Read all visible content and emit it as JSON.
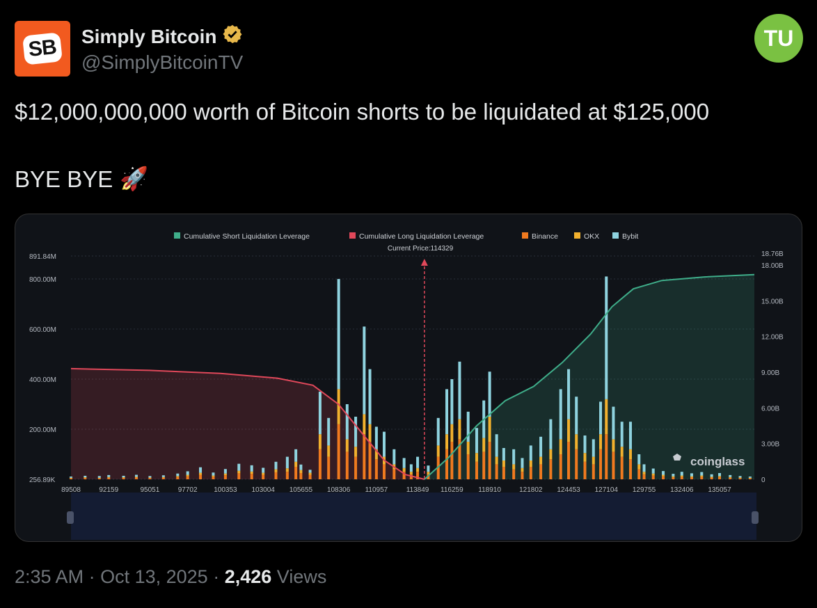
{
  "author": {
    "name": "Simply Bitcoin",
    "handle": "@SimplyBitcoinTV",
    "avatar_text": "SB",
    "verified_icon": "verified-badge-icon"
  },
  "brand_logo_text": "TU",
  "tweet": {
    "line1": "$12,000,000,000 worth of Bitcoin shorts to be liquidated at $125,000",
    "line2": "BYE BYE",
    "emoji": "🚀"
  },
  "meta": {
    "time": "2:35 AM",
    "date": "Oct 13, 2025",
    "views_count": "2,426",
    "views_label": "Views"
  },
  "chart_data": {
    "type": "bar",
    "annotation": "Current Price:114329",
    "current_price": 114329,
    "watermark": "coinglass",
    "legend": [
      {
        "name": "Cumulative Short Liquidation Leverage",
        "color": "#3fae8a"
      },
      {
        "name": "Cumulative Long Liquidation Leverage",
        "color": "#e0485a"
      },
      {
        "name": "Binance",
        "color": "#f07a1f"
      },
      {
        "name": "OKX",
        "color": "#f2b12e"
      },
      {
        "name": "Bybit",
        "color": "#8fd3df"
      }
    ],
    "legend_position": "top-center",
    "x_tick_labels": [
      "89508",
      "92159",
      "95051",
      "97702",
      "100353",
      "103004",
      "105655",
      "108306",
      "110957",
      "113849",
      "116259",
      "118910",
      "121802",
      "124453",
      "127104",
      "129755",
      "132406",
      "135057"
    ],
    "xlim": [
      89508,
      137500
    ],
    "y_left_ticks": [
      "256.89K",
      "200.00M",
      "400.00M",
      "600.00M",
      "800.00M",
      "891.84M"
    ],
    "y_left_values": [
      0.257,
      200,
      400,
      600,
      800,
      891.84
    ],
    "y_left_unit": "M",
    "ylim_left": [
      0,
      891.84
    ],
    "y_right_ticks": [
      "0",
      "3.00B",
      "6.00B",
      "9.00B",
      "12.00B",
      "15.00B",
      "18.00B",
      "18.76B"
    ],
    "y_right_values": [
      0,
      3,
      6,
      9,
      12,
      15,
      18,
      18.76
    ],
    "ylim_right": [
      0,
      18.76
    ],
    "cumulative_long": {
      "name": "Cumulative Long Liquidation Leverage",
      "x": [
        89508,
        95000,
        100000,
        104000,
        106500,
        108300,
        110000,
        111500,
        113000,
        114329
      ],
      "y": [
        9.3,
        9.15,
        8.9,
        8.5,
        7.9,
        6.3,
        3.8,
        1.6,
        0.4,
        0.0
      ]
    },
    "cumulative_short": {
      "name": "Cumulative Short Liquidation Leverage",
      "x": [
        114329,
        116000,
        118000,
        120000,
        122000,
        124000,
        126000,
        127500,
        129000,
        131000,
        134000,
        137500
      ],
      "y": [
        0.0,
        1.8,
        4.5,
        6.6,
        7.8,
        9.8,
        12.2,
        14.5,
        16.0,
        16.7,
        17.0,
        17.2
      ]
    },
    "bars": [
      {
        "x": 89508,
        "binance": 4,
        "okx": 2,
        "bybit": 5
      },
      {
        "x": 90500,
        "binance": 5,
        "okx": 3,
        "bybit": 6
      },
      {
        "x": 91500,
        "binance": 4,
        "okx": 2,
        "bybit": 7
      },
      {
        "x": 92159,
        "binance": 6,
        "okx": 3,
        "bybit": 8
      },
      {
        "x": 93200,
        "binance": 5,
        "okx": 3,
        "bybit": 6
      },
      {
        "x": 94100,
        "binance": 7,
        "okx": 3,
        "bybit": 8
      },
      {
        "x": 95051,
        "binance": 5,
        "okx": 2,
        "bybit": 6
      },
      {
        "x": 96000,
        "binance": 6,
        "okx": 3,
        "bybit": 7
      },
      {
        "x": 97000,
        "binance": 9,
        "okx": 4,
        "bybit": 10
      },
      {
        "x": 97702,
        "binance": 12,
        "okx": 6,
        "bybit": 14
      },
      {
        "x": 98600,
        "binance": 18,
        "okx": 8,
        "bybit": 22
      },
      {
        "x": 99500,
        "binance": 10,
        "okx": 5,
        "bybit": 12
      },
      {
        "x": 100353,
        "binance": 16,
        "okx": 7,
        "bybit": 18
      },
      {
        "x": 101300,
        "binance": 24,
        "okx": 10,
        "bybit": 28
      },
      {
        "x": 102200,
        "binance": 22,
        "okx": 9,
        "bybit": 25
      },
      {
        "x": 103004,
        "binance": 18,
        "okx": 8,
        "bybit": 20
      },
      {
        "x": 103900,
        "binance": 28,
        "okx": 12,
        "bybit": 30
      },
      {
        "x": 104700,
        "binance": 30,
        "okx": 14,
        "bybit": 46
      },
      {
        "x": 105300,
        "binance": 50,
        "okx": 20,
        "bybit": 50
      },
      {
        "x": 105655,
        "binance": 25,
        "okx": 12,
        "bybit": 22
      },
      {
        "x": 106300,
        "binance": 18,
        "okx": 8,
        "bybit": 12
      },
      {
        "x": 107000,
        "binance": 120,
        "okx": 60,
        "bybit": 170
      },
      {
        "x": 107600,
        "binance": 90,
        "okx": 45,
        "bybit": 110
      },
      {
        "x": 108306,
        "binance": 220,
        "okx": 140,
        "bybit": 440
      },
      {
        "x": 108900,
        "binance": 110,
        "okx": 50,
        "bybit": 140
      },
      {
        "x": 109500,
        "binance": 90,
        "okx": 40,
        "bybit": 120
      },
      {
        "x": 110100,
        "binance": 180,
        "okx": 80,
        "bybit": 350
      },
      {
        "x": 110500,
        "binance": 150,
        "okx": 70,
        "bybit": 220
      },
      {
        "x": 110957,
        "binance": 80,
        "okx": 40,
        "bybit": 90
      },
      {
        "x": 111500,
        "binance": 60,
        "okx": 30,
        "bybit": 100
      },
      {
        "x": 112200,
        "binance": 40,
        "okx": 20,
        "bybit": 60
      },
      {
        "x": 112900,
        "binance": 30,
        "okx": 15,
        "bybit": 40
      },
      {
        "x": 113400,
        "binance": 20,
        "okx": 10,
        "bybit": 30
      },
      {
        "x": 113849,
        "binance": 30,
        "okx": 15,
        "bybit": 45
      },
      {
        "x": 114600,
        "binance": 20,
        "okx": 10,
        "bybit": 25
      },
      {
        "x": 115300,
        "binance": 90,
        "okx": 45,
        "bybit": 110
      },
      {
        "x": 115900,
        "binance": 120,
        "okx": 60,
        "bybit": 180
      },
      {
        "x": 116259,
        "binance": 150,
        "okx": 70,
        "bybit": 180
      },
      {
        "x": 116800,
        "binance": 160,
        "okx": 80,
        "bybit": 230
      },
      {
        "x": 117400,
        "binance": 100,
        "okx": 50,
        "bybit": 120
      },
      {
        "x": 118000,
        "binance": 70,
        "okx": 35,
        "bybit": 100
      },
      {
        "x": 118500,
        "binance": 110,
        "okx": 55,
        "bybit": 150
      },
      {
        "x": 118910,
        "binance": 150,
        "okx": 100,
        "bybit": 180
      },
      {
        "x": 119400,
        "binance": 60,
        "okx": 30,
        "bybit": 90
      },
      {
        "x": 119900,
        "binance": 50,
        "okx": 25,
        "bybit": 50
      },
      {
        "x": 120600,
        "binance": 40,
        "okx": 20,
        "bybit": 60
      },
      {
        "x": 121200,
        "binance": 30,
        "okx": 15,
        "bybit": 40
      },
      {
        "x": 121802,
        "binance": 50,
        "okx": 25,
        "bybit": 60
      },
      {
        "x": 122500,
        "binance": 60,
        "okx": 30,
        "bybit": 80
      },
      {
        "x": 123200,
        "binance": 80,
        "okx": 40,
        "bybit": 120
      },
      {
        "x": 123900,
        "binance": 100,
        "okx": 60,
        "bybit": 200
      },
      {
        "x": 124453,
        "binance": 150,
        "okx": 90,
        "bybit": 200
      },
      {
        "x": 125000,
        "binance": 120,
        "okx": 60,
        "bybit": 150
      },
      {
        "x": 125600,
        "binance": 70,
        "okx": 35,
        "bybit": 70
      },
      {
        "x": 126200,
        "binance": 60,
        "okx": 30,
        "bybit": 70
      },
      {
        "x": 126700,
        "binance": 120,
        "okx": 60,
        "bybit": 130
      },
      {
        "x": 127104,
        "binance": 180,
        "okx": 140,
        "bybit": 490
      },
      {
        "x": 127600,
        "binance": 110,
        "okx": 50,
        "bybit": 130
      },
      {
        "x": 128200,
        "binance": 90,
        "okx": 40,
        "bybit": 100
      },
      {
        "x": 128800,
        "binance": 80,
        "okx": 40,
        "bybit": 110
      },
      {
        "x": 129400,
        "binance": 40,
        "okx": 20,
        "bybit": 40
      },
      {
        "x": 129755,
        "binance": 20,
        "okx": 10,
        "bybit": 30
      },
      {
        "x": 130400,
        "binance": 15,
        "okx": 8,
        "bybit": 20
      },
      {
        "x": 131100,
        "binance": 12,
        "okx": 6,
        "bybit": 15
      },
      {
        "x": 131800,
        "binance": 8,
        "okx": 4,
        "bybit": 10
      },
      {
        "x": 132406,
        "binance": 10,
        "okx": 5,
        "bybit": 15
      },
      {
        "x": 133100,
        "binance": 8,
        "okx": 4,
        "bybit": 12
      },
      {
        "x": 133800,
        "binance": 10,
        "okx": 5,
        "bybit": 14
      },
      {
        "x": 134500,
        "binance": 7,
        "okx": 3,
        "bybit": 10
      },
      {
        "x": 135057,
        "binance": 9,
        "okx": 4,
        "bybit": 12
      },
      {
        "x": 135800,
        "binance": 6,
        "okx": 3,
        "bybit": 8
      },
      {
        "x": 136500,
        "binance": 5,
        "okx": 2,
        "bybit": 6
      },
      {
        "x": 137200,
        "binance": 4,
        "okx": 2,
        "bybit": 5
      }
    ]
  }
}
